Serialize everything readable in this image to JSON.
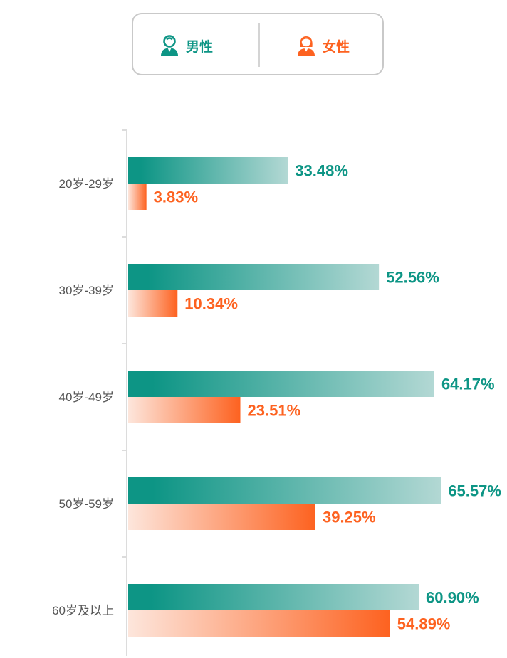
{
  "legend": {
    "male_label": "男性",
    "female_label": "女性",
    "male_icon": "male-person-icon",
    "female_icon": "female-person-icon"
  },
  "colors": {
    "male": "#0d9585",
    "male_light": "#b3d8d4",
    "female": "#fd6220",
    "female_light": "#fde6dc"
  },
  "chart_data": {
    "type": "bar",
    "orientation": "horizontal",
    "categories": [
      "20岁-29岁",
      "30岁-39岁",
      "40岁-49岁",
      "50岁-59岁",
      "60岁及以上"
    ],
    "series": [
      {
        "name": "男性",
        "values": [
          33.48,
          52.56,
          64.17,
          65.57,
          60.9
        ],
        "labels": [
          "33.48%",
          "52.56%",
          "64.17%",
          "65.57%",
          "60.90%"
        ]
      },
      {
        "name": "女性",
        "values": [
          3.83,
          10.34,
          23.51,
          39.25,
          54.89
        ],
        "labels": [
          "3.83%",
          "10.34%",
          "23.51%",
          "39.25%",
          "54.89%"
        ]
      }
    ],
    "xlim": [
      0,
      100
    ],
    "grid": false,
    "legend_position": "top-center"
  }
}
